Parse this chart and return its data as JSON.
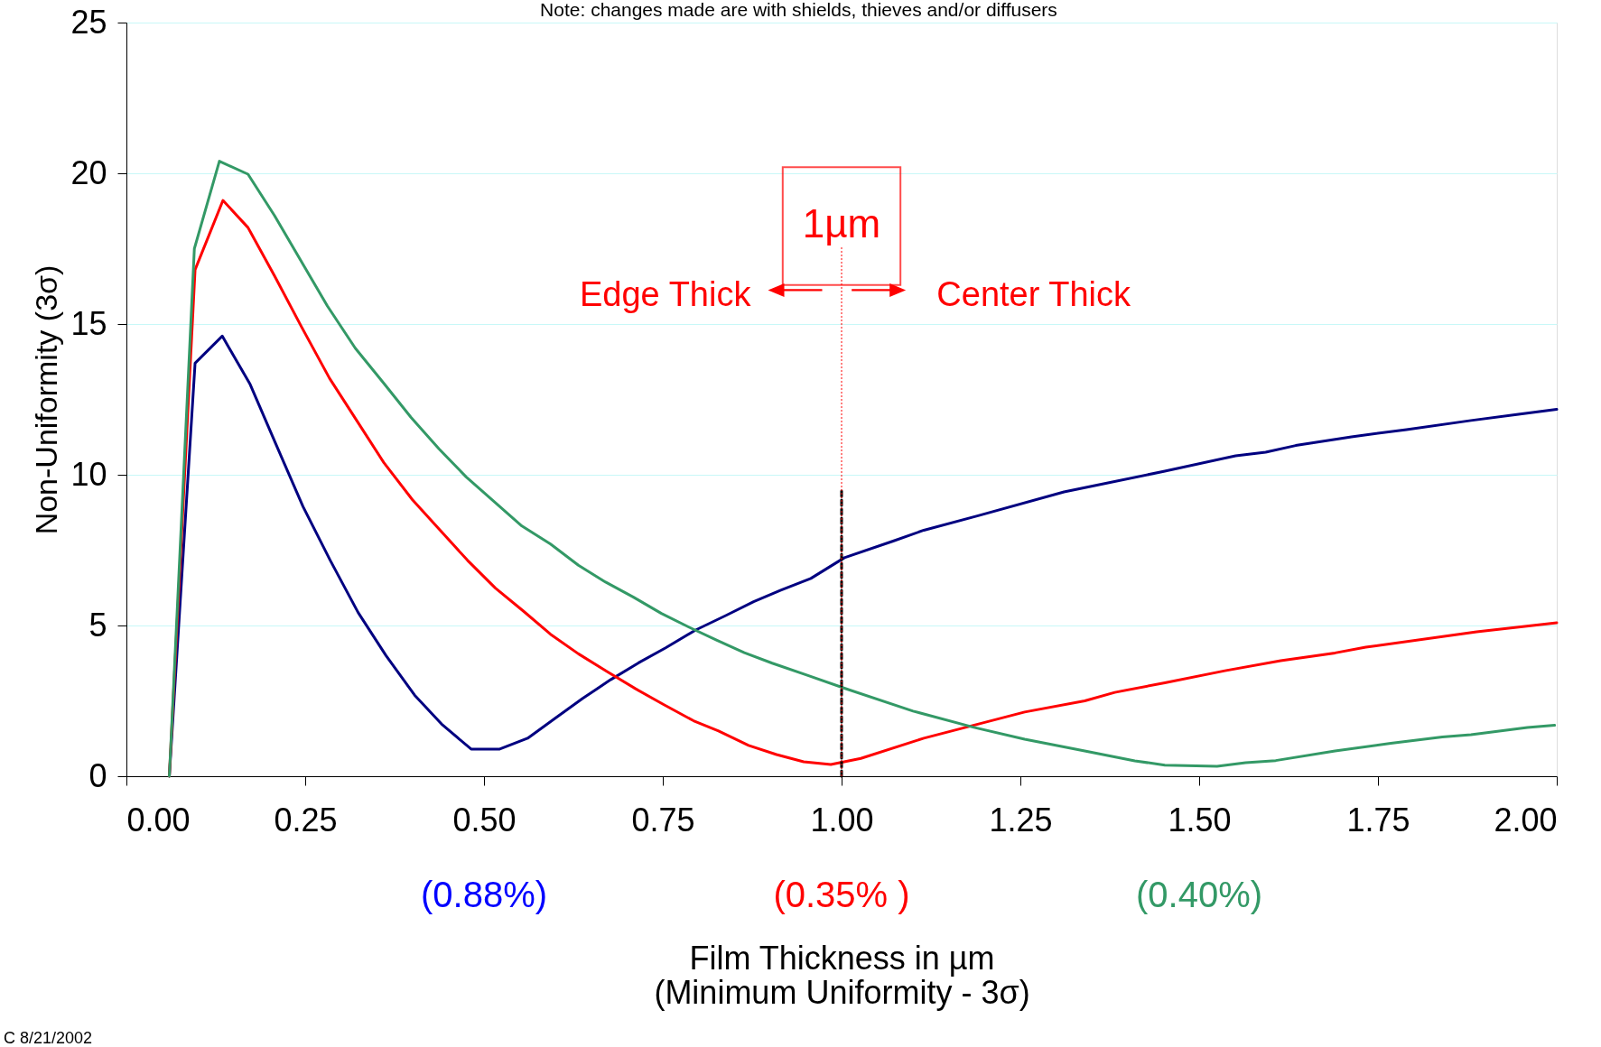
{
  "chart_data": {
    "type": "line",
    "xlabel": "Film Thickness in µm\n(Minimum Uniformity - 3σ)",
    "ylabel": "Non-Uniformity (3σ)",
    "annotations": [
      "Note:  changes made are with shields, thieves and/or diffusers",
      "Edge Thick",
      "Center Thick",
      "(0.88%)",
      "(0.35% )",
      "(0.40%)",
      "C 8/21/2002"
    ],
    "series": [
      {
        "color": "#000080",
        "x": [
          0.06,
          0.096,
          0.134,
          0.173,
          0.21,
          0.247,
          0.285,
          0.324,
          0.363,
          0.403,
          0.442,
          0.482,
          0.522,
          0.561,
          0.6,
          0.638,
          0.677,
          0.716,
          0.754,
          0.796,
          0.838,
          0.877,
          0.915,
          0.957,
          1.004,
          1.072,
          1.115,
          1.192,
          1.311,
          1.354,
          1.452,
          1.551,
          1.593,
          1.635,
          1.713,
          1.79,
          1.88,
          1.944,
          2.0
        ],
        "values": [
          0,
          13.7,
          14.6,
          13.0,
          10.96,
          8.94,
          7.16,
          5.43,
          4.0,
          2.69,
          1.7,
          0.9,
          0.9,
          1.26,
          1.93,
          2.58,
          3.2,
          3.76,
          4.26,
          4.85,
          5.33,
          5.79,
          6.17,
          6.56,
          7.25,
          7.8,
          8.16,
          8.65,
          9.43,
          9.64,
          10.12,
          10.63,
          10.75,
          10.97,
          11.26,
          11.5,
          11.8,
          12.0,
          12.17
        ]
      },
      {
        "color": "#ff0000",
        "x": [
          0.06,
          0.096,
          0.135,
          0.17,
          0.207,
          0.245,
          0.284,
          0.322,
          0.36,
          0.4,
          0.439,
          0.477,
          0.516,
          0.555,
          0.593,
          0.632,
          0.673,
          0.712,
          0.751,
          0.793,
          0.828,
          0.87,
          0.909,
          0.947,
          0.985,
          1.027,
          1.115,
          1.256,
          1.34,
          1.382,
          1.452,
          1.536,
          1.614,
          1.69,
          1.733,
          1.888,
          2.0
        ],
        "values": [
          0,
          16.8,
          19.1,
          18.2,
          16.6,
          14.9,
          13.2,
          11.8,
          10.4,
          9.17,
          8.15,
          7.16,
          6.24,
          5.48,
          4.71,
          4.06,
          3.46,
          2.9,
          2.38,
          1.84,
          1.5,
          1.02,
          0.72,
          0.48,
          0.39,
          0.59,
          1.26,
          2.13,
          2.5,
          2.78,
          3.1,
          3.5,
          3.83,
          4.09,
          4.28,
          4.79,
          5.09
        ]
      },
      {
        "color": "#339966",
        "x": [
          0.06,
          0.095,
          0.13,
          0.17,
          0.207,
          0.281,
          0.32,
          0.361,
          0.398,
          0.437,
          0.475,
          0.553,
          0.593,
          0.632,
          0.67,
          0.709,
          0.748,
          0.787,
          0.825,
          0.864,
          0.903,
          0.953,
          1.004,
          1.1,
          1.185,
          1.256,
          1.34,
          1.41,
          1.452,
          1.525,
          1.565,
          1.607,
          1.69,
          1.768,
          1.84,
          1.88,
          1.959,
          1.997
        ],
        "values": [
          0,
          17.5,
          20.4,
          19.97,
          18.6,
          15.6,
          14.2,
          13.0,
          11.9,
          10.86,
          9.93,
          8.3,
          7.7,
          7.0,
          6.44,
          5.94,
          5.4,
          4.94,
          4.52,
          4.1,
          3.75,
          3.34,
          2.92,
          2.16,
          1.62,
          1.23,
          0.84,
          0.51,
          0.37,
          0.33,
          0.45,
          0.52,
          0.84,
          1.09,
          1.3,
          1.38,
          1.62,
          1.69
        ]
      },
      {
        "type": "line",
        "color": "#000000",
        "line_style": "dashed",
        "x": [
          1.0,
          1.0
        ],
        "values": [
          0,
          9.5
        ]
      }
    ],
    "ref_lines": [
      {
        "axis": "x",
        "value": 1.0,
        "label": "1µm",
        "color": "#ff0000",
        "line_style": "dotted"
      }
    ],
    "xlim": [
      0,
      2
    ],
    "ylim": [
      0,
      25
    ],
    "xticks": [
      {
        "value": 0,
        "label": "0.00"
      },
      {
        "value": 0.25,
        "label": "0.25"
      },
      {
        "value": 0.5,
        "label": "0.50"
      },
      {
        "value": 0.75,
        "label": "0.75"
      },
      {
        "value": 1.0,
        "label": "1.00"
      },
      {
        "value": 1.25,
        "label": "1.25"
      },
      {
        "value": 1.5,
        "label": "1.50"
      },
      {
        "value": 1.75,
        "label": "1.75"
      },
      {
        "value": 2.0,
        "label": "2.00"
      }
    ],
    "yticks": [
      0,
      5,
      10,
      15,
      20,
      25
    ],
    "grid": "y",
    "marker": "none",
    "line_style": "solid"
  }
}
